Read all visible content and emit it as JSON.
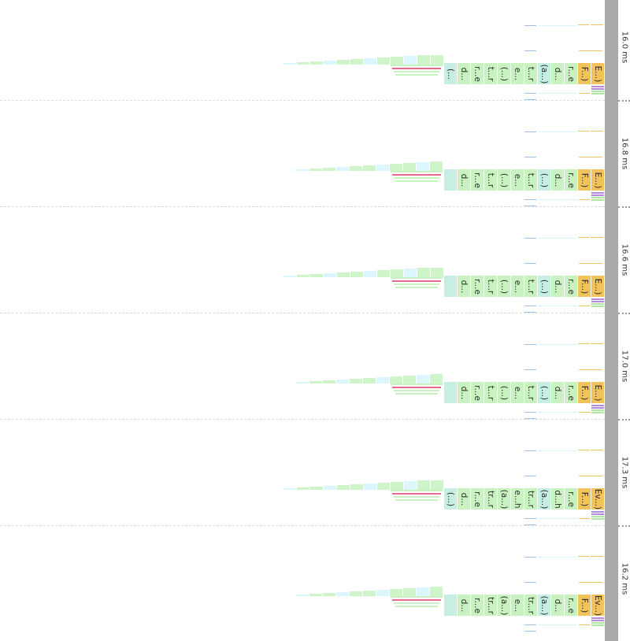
{
  "colors": {
    "event": "#f2c35a",
    "function": "#c8f2c0",
    "function_alt": "#d6f5ff",
    "sliver_green": "#aee6a3",
    "sliver_blue": "#9fc3e6",
    "sliver_purple": "#b48ad9",
    "sliver_orange": "#f0c465"
  },
  "lanes": [
    {
      "duration": "16.0 ms",
      "labels": [
        "(...",
        "d...",
        "r...e",
        "t...r",
        "(...)",
        "e...",
        "t...r",
        "(a...)",
        "d...",
        "r...e",
        "F...)",
        "E...)"
      ]
    },
    {
      "duration": "16.8 ms",
      "labels": [
        "",
        "d...",
        "r...e",
        "t...r",
        "(...)",
        "e...",
        "t...r",
        "(...)",
        "d...",
        "r...e",
        "F...)",
        "E...)"
      ]
    },
    {
      "duration": "16.6 ms",
      "labels": [
        "",
        "d...",
        "r...e",
        "t...r",
        "(...)",
        "e...",
        "t...r",
        "(...)",
        "d...",
        "r...e",
        "F...)",
        "E...)"
      ]
    },
    {
      "duration": "17.0 ms",
      "labels": [
        "",
        "d...",
        "r...e",
        "t...r",
        "(...)",
        "e...",
        "t...r",
        "(...)",
        "d...",
        "r...e",
        "F...)",
        "E...)"
      ]
    },
    {
      "duration": "17.3 ms",
      "labels": [
        "(...)",
        "d...",
        "r...e",
        "tr...r",
        "(a...)",
        "e...h",
        "tr...r",
        "(a...)",
        "d...h",
        "r...e",
        "F...)",
        "Ev...)"
      ]
    },
    {
      "duration": "16.2 ms",
      "labels": [
        "",
        "d...",
        "r...e",
        "tr...r",
        "(a...)",
        "e...",
        "tr...r",
        "(a...)",
        "d...",
        "r...e",
        "F...)",
        "Ev...)"
      ]
    }
  ]
}
